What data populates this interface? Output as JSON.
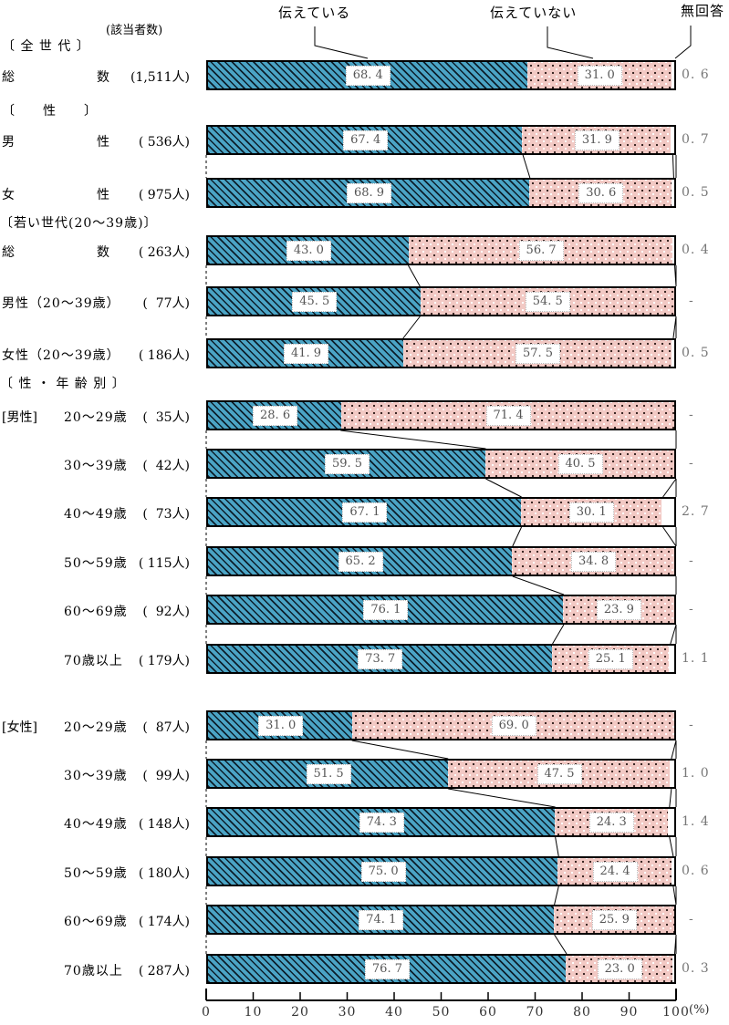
{
  "legend": {
    "telling": "伝えている",
    "not_telling": "伝えていない",
    "no_answer": "無回答"
  },
  "respondents_header": "(該当者数)",
  "axis": {
    "ticks": [
      "0",
      "10",
      "20",
      "30",
      "40",
      "50",
      "60",
      "70",
      "80",
      "90",
      "100"
    ],
    "unit": "(%)"
  },
  "colors": {
    "telling_fill": "#4BA4C5",
    "not_telling_fill": "#F2C9C4",
    "hatch_and_border": "#000000",
    "value_text": "#555555",
    "na_text": "#777777"
  },
  "chart_data": {
    "type": "bar",
    "stacked": true,
    "orientation": "horizontal",
    "xlim": [
      0,
      100
    ],
    "x_ticks": [
      0,
      10,
      20,
      30,
      40,
      50,
      60,
      70,
      80,
      90,
      100
    ],
    "x_unit": "(%)",
    "series_names": [
      "伝えている",
      "伝えていない",
      "無回答"
    ],
    "sections": [
      {
        "header": "〔 全 世 代 〕",
        "rows": [
          {
            "label": "総数",
            "label_type": "justify",
            "count": "(1,511人)",
            "values": [
              68.4,
              31.0,
              0.6
            ],
            "labels": [
              "68.4",
              "31.0",
              "0.6"
            ]
          }
        ]
      },
      {
        "header": "〔　　性　　〕",
        "rows": [
          {
            "label": "男性",
            "label_type": "justify",
            "count": "( 536人)",
            "values": [
              67.4,
              31.9,
              0.7
            ],
            "labels": [
              "67.4",
              "31.9",
              "0.7"
            ]
          },
          {
            "label": "女性",
            "label_type": "justify",
            "count": "( 975人)",
            "values": [
              68.9,
              30.6,
              0.5
            ],
            "labels": [
              "68.9",
              "30.6",
              "0.5"
            ]
          }
        ]
      },
      {
        "header": "〔若い世代(20〜39歳)〕",
        "rows": [
          {
            "label": "総数",
            "label_type": "justify",
            "count": "( 263人)",
            "values": [
              43.0,
              56.7,
              0.4
            ],
            "labels": [
              "43.0",
              "56.7",
              "0.4"
            ]
          },
          {
            "label": "男性（20〜39歳）",
            "label_type": "plain",
            "count": "(  77人)",
            "values": [
              45.5,
              54.5,
              null
            ],
            "labels": [
              "45.5",
              "54.5",
              "-"
            ]
          },
          {
            "label": "女性（20〜39歳）",
            "label_type": "plain",
            "count": "( 186人)",
            "values": [
              41.9,
              57.5,
              0.5
            ],
            "labels": [
              "41.9",
              "57.5",
              "0.5"
            ]
          }
        ]
      },
      {
        "header": "〔 性 ・ 年 齢 別 〕",
        "rows": [
          {
            "label": "20〜29歳",
            "label_type": "age",
            "prefix": "[男性]",
            "count": "(  35人)",
            "values": [
              28.6,
              71.4,
              null
            ],
            "labels": [
              "28.6",
              "71.4",
              "-"
            ]
          },
          {
            "label": "30〜39歳",
            "label_type": "age",
            "count": "(  42人)",
            "values": [
              59.5,
              40.5,
              null
            ],
            "labels": [
              "59.5",
              "40.5",
              "-"
            ]
          },
          {
            "label": "40〜49歳",
            "label_type": "age",
            "count": "(  73人)",
            "values": [
              67.1,
              30.1,
              2.7
            ],
            "labels": [
              "67.1",
              "30.1",
              "2.7"
            ]
          },
          {
            "label": "50〜59歳",
            "label_type": "age",
            "count": "( 115人)",
            "values": [
              65.2,
              34.8,
              null
            ],
            "labels": [
              "65.2",
              "34.8",
              "-"
            ]
          },
          {
            "label": "60〜69歳",
            "label_type": "age",
            "count": "(  92人)",
            "values": [
              76.1,
              23.9,
              null
            ],
            "labels": [
              "76.1",
              "23.9",
              "-"
            ]
          },
          {
            "label": "70歳以上",
            "label_type": "age",
            "count": "( 179人)",
            "values": [
              73.7,
              25.1,
              1.1
            ],
            "labels": [
              "73.7",
              "25.1",
              "1.1"
            ]
          }
        ]
      },
      {
        "header": null,
        "rows": [
          {
            "label": "20〜29歳",
            "label_type": "age",
            "prefix": "[女性]",
            "count": "(  87人)",
            "values": [
              31.0,
              69.0,
              null
            ],
            "labels": [
              "31.0",
              "69.0",
              "-"
            ]
          },
          {
            "label": "30〜39歳",
            "label_type": "age",
            "count": "(  99人)",
            "values": [
              51.5,
              47.5,
              1.0
            ],
            "labels": [
              "51.5",
              "47.5",
              "1.0"
            ]
          },
          {
            "label": "40〜49歳",
            "label_type": "age",
            "count": "( 148人)",
            "values": [
              74.3,
              24.3,
              1.4
            ],
            "labels": [
              "74.3",
              "24.3",
              "1.4"
            ]
          },
          {
            "label": "50〜59歳",
            "label_type": "age",
            "count": "( 180人)",
            "values": [
              75.0,
              24.4,
              0.6
            ],
            "labels": [
              "75.0",
              "24.4",
              "0.6"
            ]
          },
          {
            "label": "60〜69歳",
            "label_type": "age",
            "count": "( 174人)",
            "values": [
              74.1,
              25.9,
              null
            ],
            "labels": [
              "74.1",
              "25.9",
              "-"
            ]
          },
          {
            "label": "70歳以上",
            "label_type": "age",
            "count": "( 287人)",
            "values": [
              76.7,
              23.0,
              0.3
            ],
            "labels": [
              "76.7",
              "23.0",
              "0.3"
            ]
          }
        ]
      }
    ]
  }
}
